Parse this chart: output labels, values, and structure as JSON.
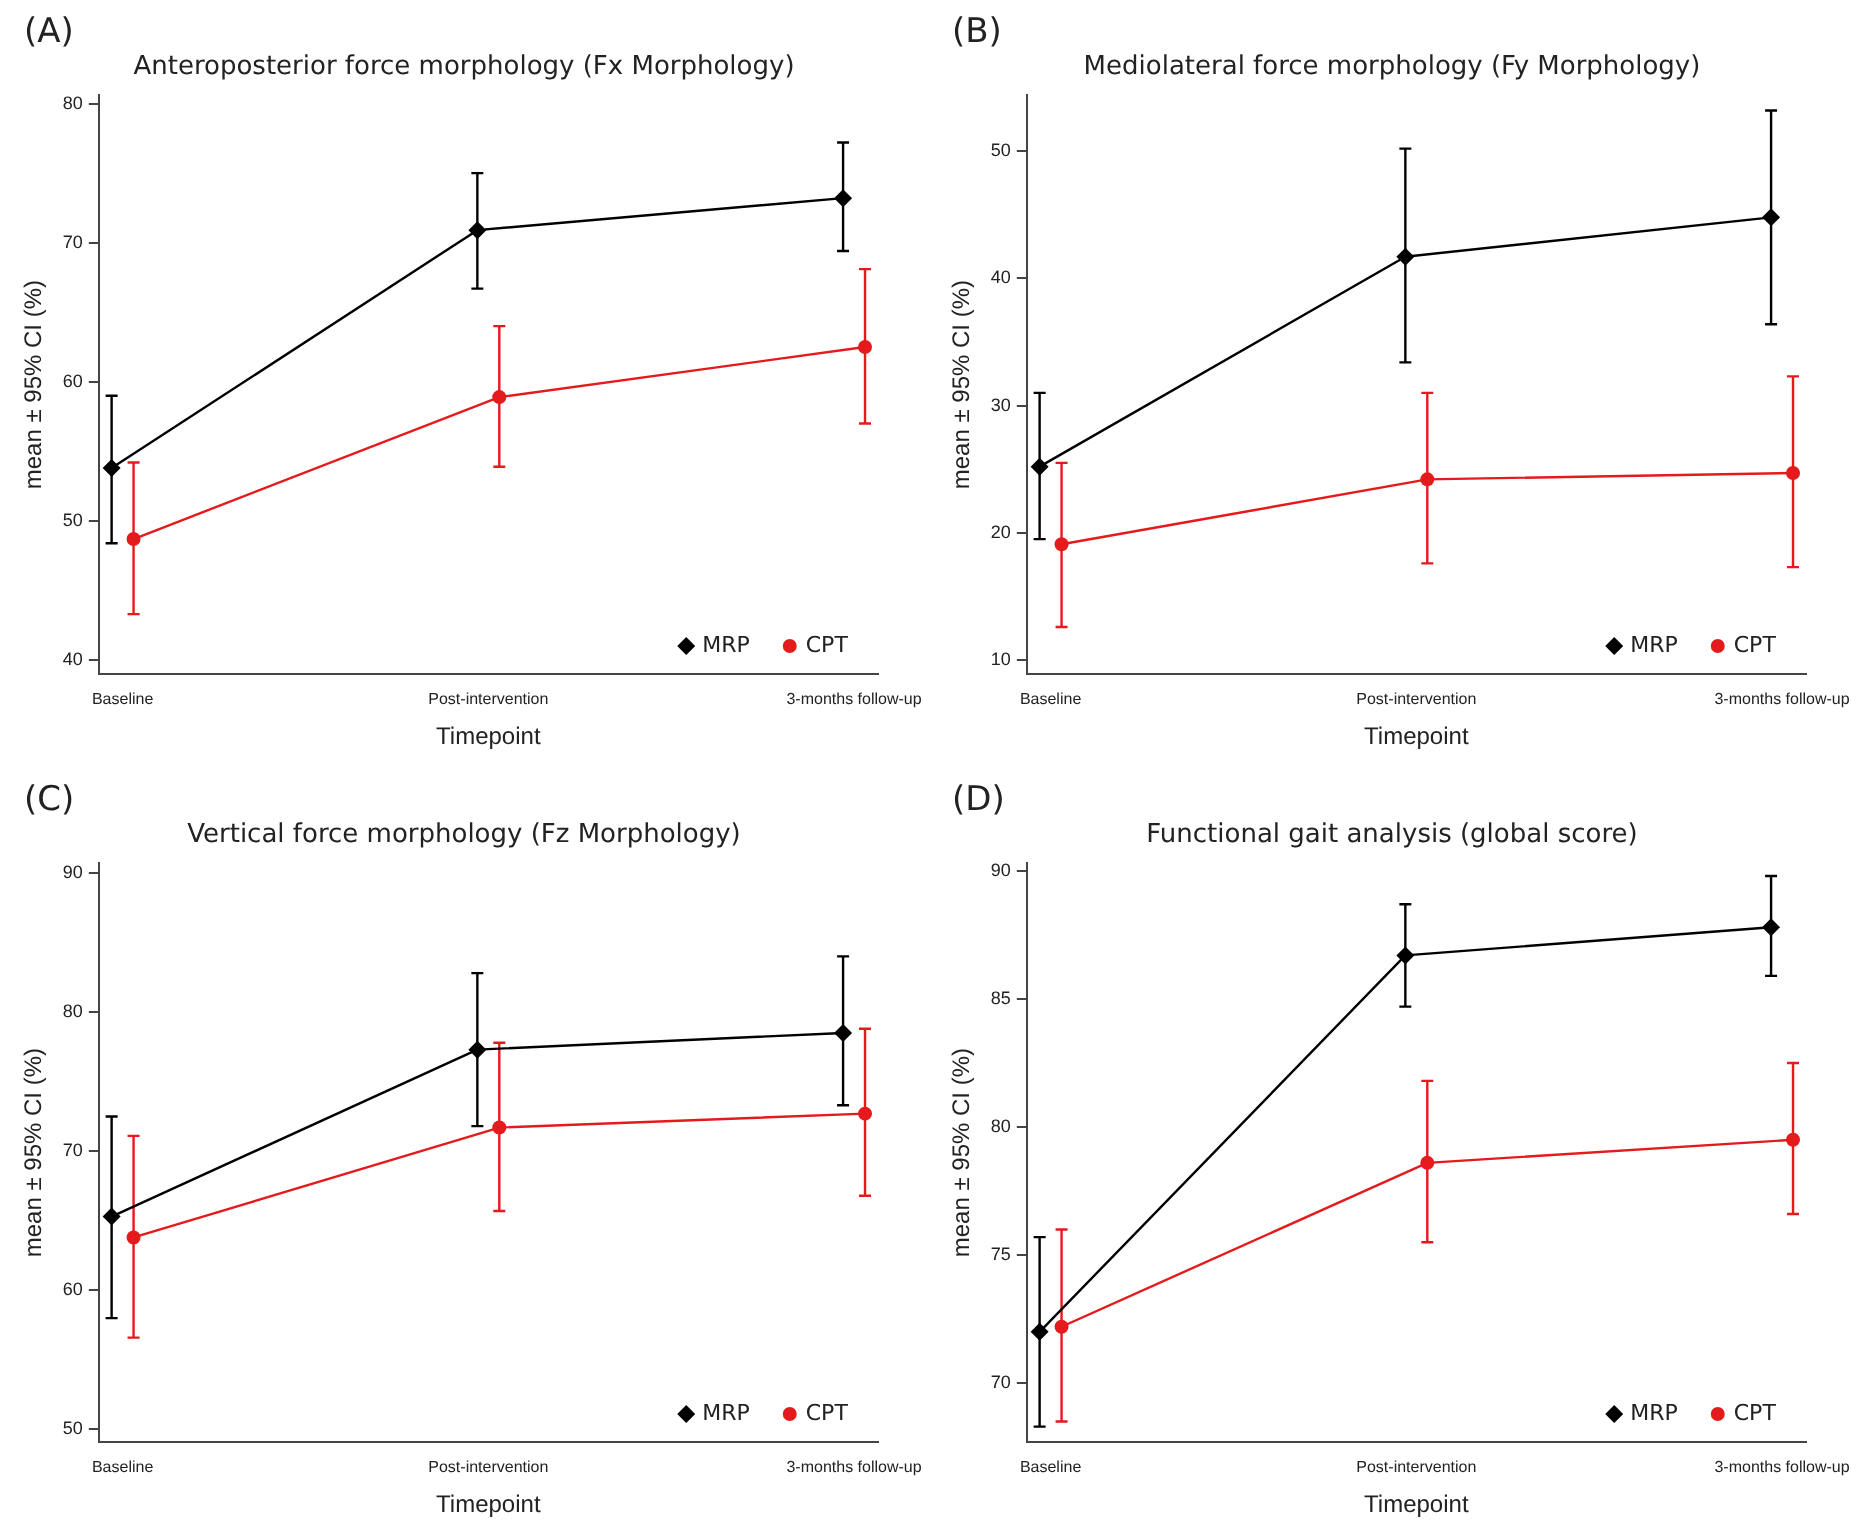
{
  "chart_data": [
    {
      "type": "line",
      "title": "Anteroposterior force morphology (Fx Morphology)",
      "annotations": [
        "(A)"
      ],
      "xlabel": "Timepoint",
      "ylabel": "mean ± 95% CI (%)",
      "categories": [
        "Baseline",
        "Post-intervention",
        "3-months follow-up"
      ],
      "ylim": [
        39,
        80.6
      ],
      "yticks": [
        40,
        50,
        60,
        70,
        80
      ],
      "grid": false,
      "legend": "bottom right",
      "series": [
        {
          "name": "MRP",
          "color": "#000000",
          "marker": "diamond",
          "values": [
            53.8,
            70.9,
            73.2
          ],
          "errors": [
            [
              48.4,
              59
            ],
            [
              66.7,
              75
            ],
            [
              69.4,
              77.2
            ]
          ]
        },
        {
          "name": "CPT",
          "color": "#e41a1c",
          "marker": "circle",
          "values": [
            48.7,
            58.9,
            62.5
          ],
          "errors": [
            [
              43.3,
              54.2
            ],
            [
              53.9,
              64
            ],
            [
              57,
              68.1
            ]
          ]
        }
      ]
    },
    {
      "type": "line",
      "title": "Mediolateral force morphology (Fy Morphology)",
      "annotations": [
        "(B)"
      ],
      "xlabel": "Timepoint",
      "ylabel": "mean ± 95% CI (%)",
      "categories": [
        "Baseline",
        "Post-intervention",
        "3-months follow-up"
      ],
      "ylim": [
        8.9,
        54.4
      ],
      "yticks": [
        10,
        20,
        30,
        40,
        50
      ],
      "grid": false,
      "legend": "bottom right",
      "series": [
        {
          "name": "MRP",
          "color": "#000000",
          "marker": "diamond",
          "values": [
            25.2,
            41.7,
            44.8
          ],
          "errors": [
            [
              19.5,
              31
            ],
            [
              33.4,
              50.2
            ],
            [
              36.4,
              53.2
            ]
          ]
        },
        {
          "name": "CPT",
          "color": "#e41a1c",
          "marker": "circle",
          "values": [
            19.1,
            24.2,
            24.7
          ],
          "errors": [
            [
              12.6,
              25.5
            ],
            [
              17.6,
              31
            ],
            [
              17.3,
              32.3
            ]
          ]
        }
      ]
    },
    {
      "type": "line",
      "title": "Vertical force morphology (Fz Morphology)",
      "annotations": [
        "(C)"
      ],
      "xlabel": "Timepoint",
      "ylabel": "mean ± 95% CI (%)",
      "categories": [
        "Baseline",
        "Post-intervention",
        "3-months follow-up"
      ],
      "ylim": [
        49.1,
        90.7
      ],
      "yticks": [
        50,
        60,
        70,
        80,
        90
      ],
      "grid": false,
      "legend": "bottom right",
      "series": [
        {
          "name": "MRP",
          "color": "#000000",
          "marker": "diamond",
          "values": [
            65.3,
            77.3,
            78.5
          ],
          "errors": [
            [
              58,
              72.5
            ],
            [
              71.8,
              82.8
            ],
            [
              73.3,
              84
            ]
          ]
        },
        {
          "name": "CPT",
          "color": "#e41a1c",
          "marker": "circle",
          "values": [
            63.8,
            71.7,
            72.7
          ],
          "errors": [
            [
              56.6,
              71.1
            ],
            [
              65.7,
              77.8
            ],
            [
              66.8,
              78.8
            ]
          ]
        }
      ]
    },
    {
      "type": "line",
      "title": "Functional gait analysis (global score)",
      "annotations": [
        "(D)"
      ],
      "xlabel": "Timepoint",
      "ylabel": "mean ± 95% CI (%)",
      "categories": [
        "Baseline",
        "Post-intervention",
        "3-months follow-up"
      ],
      "ylim": [
        67.7,
        90.3
      ],
      "yticks": [
        70,
        75,
        80,
        85,
        90
      ],
      "grid": false,
      "legend": "bottom right",
      "series": [
        {
          "name": "MRP",
          "color": "#000000",
          "marker": "diamond",
          "values": [
            72,
            86.7,
            87.8
          ],
          "errors": [
            [
              68.3,
              75.7
            ],
            [
              84.7,
              88.7
            ],
            [
              85.9,
              89.8
            ]
          ]
        },
        {
          "name": "CPT",
          "color": "#e41a1c",
          "marker": "circle",
          "values": [
            72.2,
            78.6,
            79.5
          ],
          "errors": [
            [
              68.5,
              76
            ],
            [
              75.5,
              81.8
            ],
            [
              76.6,
              82.5
            ]
          ]
        }
      ]
    }
  ]
}
